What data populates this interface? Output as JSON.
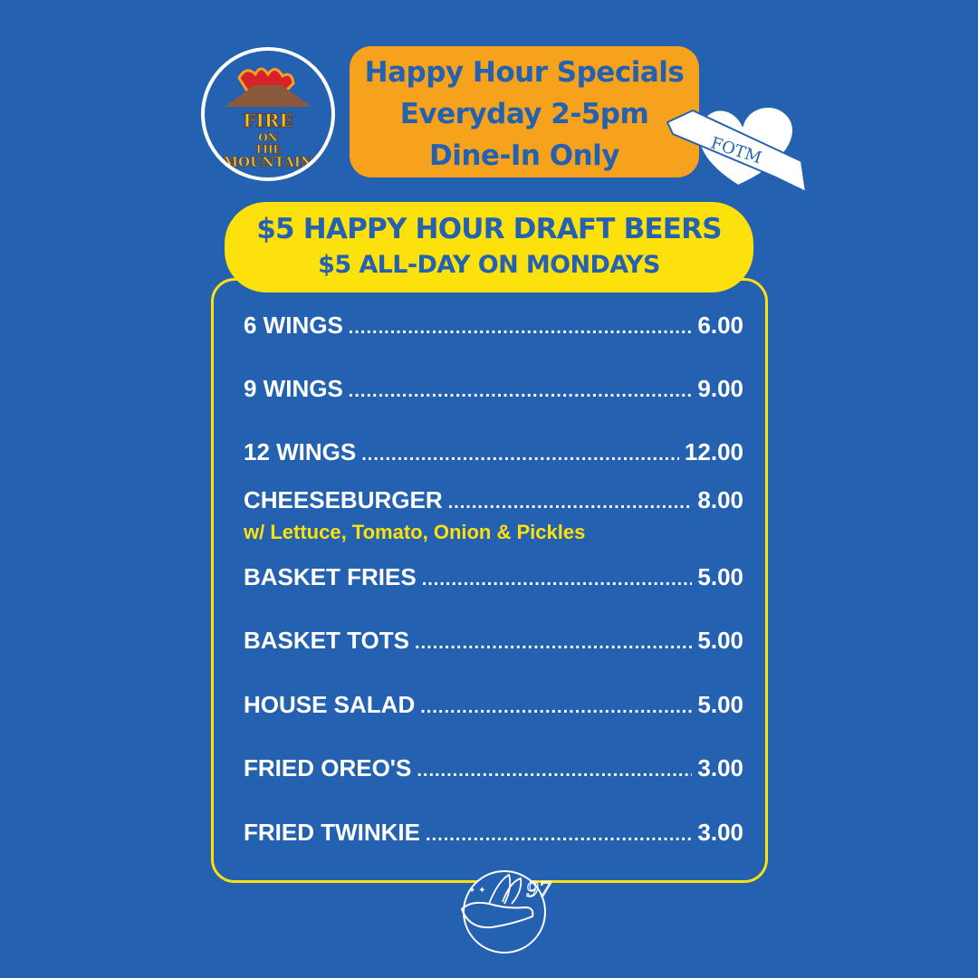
{
  "logo": {
    "text": "FIRE ON THE MOUNTAIN"
  },
  "header": {
    "lines": [
      "Happy Hour Specials",
      "Everyday 2-5pm",
      "Dine-In Only"
    ]
  },
  "heart_badge": {
    "text": "FOTM"
  },
  "beer_banner": {
    "line1": "$5 HAPPY HOUR DRAFT BEERS",
    "line2": "$5 ALL-DAY ON MONDAYS"
  },
  "menu": {
    "items": [
      {
        "name": "6 WINGS",
        "price": "6.00"
      },
      {
        "name": "9 WINGS",
        "price": "9.00"
      },
      {
        "name": "12 WINGS",
        "price": "12.00"
      },
      {
        "name": "CHEESEBURGER",
        "price": "8.00",
        "note": "w/ Lettuce, Tomato, Onion & Pickles"
      },
      {
        "name": "BASKET FRIES",
        "price": "5.00"
      },
      {
        "name": "BASKET TOTS",
        "price": "5.00"
      },
      {
        "name": "HOUSE SALAD",
        "price": "5.00"
      },
      {
        "name": "FRIED OREO'S",
        "price": "3.00"
      },
      {
        "name": "FRIED TWINKIE",
        "price": "3.00"
      }
    ]
  },
  "emblem": {
    "text": "97"
  },
  "colors": {
    "background": "#2461b0",
    "orange": "#f7a21d",
    "yellow": "#fde10c",
    "white": "#ffffff"
  }
}
